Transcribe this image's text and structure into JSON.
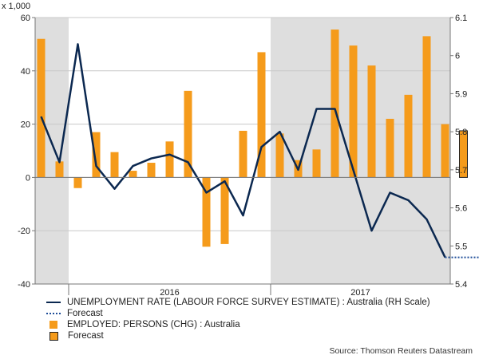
{
  "chart_data": {
    "type": "bar+line",
    "unit_label": "x 1,000",
    "left_axis": {
      "ticks": [
        -40,
        -20,
        0,
        20,
        40,
        60
      ],
      "ylim": [
        -40,
        60
      ]
    },
    "right_axis": {
      "ticks": [
        "5.4",
        "5.5",
        "5.6",
        "5.7",
        "5.8",
        "5.9",
        "6",
        "6.1"
      ],
      "ylim": [
        5.4,
        6.1
      ]
    },
    "year_labels": [
      "2016",
      "2017"
    ],
    "shaded_periods": "2015 and 2017",
    "grid": true,
    "legend_position": "bottom",
    "series": [
      {
        "name": "UNEMPLOYMENT RATE (LABOUR FORCE SURVEY ESTIMATE) : Australia (RH Scale)",
        "type": "line",
        "axis": "right",
        "color": "#0b2850",
        "values": [
          5.84,
          5.72,
          6.03,
          5.71,
          5.65,
          5.71,
          5.73,
          5.74,
          5.72,
          5.64,
          5.67,
          5.58,
          5.76,
          5.8,
          5.7,
          5.86,
          5.86,
          5.7,
          5.54,
          5.64,
          5.62,
          5.57,
          5.47
        ]
      },
      {
        "name": "Forecast",
        "type": "line-dotted",
        "axis": "right",
        "color": "#1f4e99",
        "values": [
          5.47,
          5.47,
          5.47
        ]
      },
      {
        "name": "EMPLOYED: PERSONS (CHG) : Australia",
        "type": "bar",
        "axis": "left",
        "color": "#f59b1b",
        "values": [
          52,
          6,
          -4,
          17,
          9.5,
          2.5,
          5.5,
          13.5,
          32.5,
          -26,
          -25,
          17.5,
          47,
          16.5,
          6.5,
          10.5,
          55.5,
          49.5,
          42,
          22,
          31,
          53,
          20
        ]
      },
      {
        "name": "Forecast",
        "type": "bar-outlined",
        "axis": "left",
        "color": "#f59b1b",
        "values": [
          17.5
        ]
      }
    ],
    "source": "Source: Thomson Reuters Datastream"
  },
  "legend": [
    {
      "label": "UNEMPLOYMENT RATE (LABOUR FORCE SURVEY ESTIMATE) : Australia (RH Scale)",
      "swatch": "line"
    },
    {
      "label": "Forecast",
      "swatch": "dotted"
    },
    {
      "label": "EMPLOYED: PERSONS (CHG) : Australia",
      "swatch": "bar"
    },
    {
      "label": "Forecast",
      "swatch": "bar-outlined"
    }
  ]
}
